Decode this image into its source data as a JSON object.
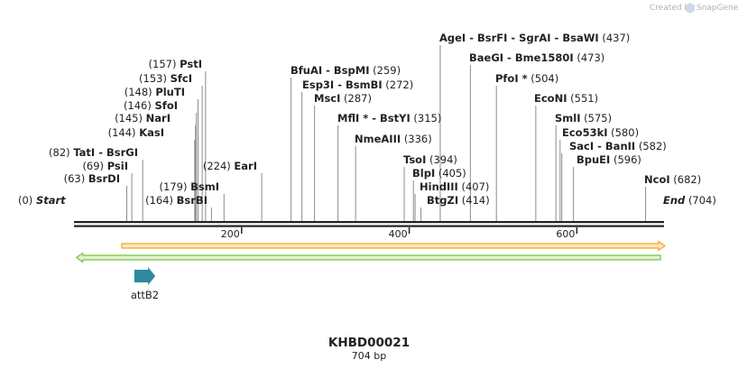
{
  "credit": {
    "prefix": "Created by",
    "brand": "SnapGene"
  },
  "map": {
    "title": "KHBD00021",
    "length_label": "704 bp",
    "length": 704,
    "ticks": [
      {
        "value": 200,
        "label": "200"
      },
      {
        "value": 400,
        "label": "400"
      },
      {
        "value": 600,
        "label": "600"
      }
    ]
  },
  "ends": {
    "start": {
      "name": "Start",
      "position": "(0)",
      "bp": 0
    },
    "end": {
      "name": "End",
      "position": "(704)",
      "bp": 704
    }
  },
  "sites": [
    {
      "id": "pstI",
      "text": "PstI",
      "pos": "(157)",
      "bp": 157,
      "pos_first": true
    },
    {
      "id": "sfcI",
      "text": "SfcI",
      "pos": "(153)",
      "bp": 153,
      "pos_first": true
    },
    {
      "id": "plutI",
      "text": "PluTI",
      "pos": "(148)",
      "bp": 148,
      "pos_first": true
    },
    {
      "id": "sfoI",
      "text": "SfoI",
      "pos": "(146)",
      "bp": 146,
      "pos_first": true
    },
    {
      "id": "narI",
      "text": "NarI",
      "pos": "(145)",
      "bp": 145,
      "pos_first": true
    },
    {
      "id": "kasI",
      "text": "KasI",
      "pos": "(144)",
      "bp": 144,
      "pos_first": true
    },
    {
      "id": "tatI",
      "text": "TatI  -  BsrGI",
      "pos": "(82)",
      "bp": 82,
      "pos_first": true
    },
    {
      "id": "psiI",
      "text": "PsiI",
      "pos": "(69)",
      "bp": 69,
      "pos_first": true
    },
    {
      "id": "bsrDI",
      "text": "BsrDI",
      "pos": "(63)",
      "bp": 63,
      "pos_first": true
    },
    {
      "id": "bsmI",
      "text": "BsmI",
      "pos": "(179)",
      "bp": 179,
      "pos_first": true
    },
    {
      "id": "bsrBI",
      "text": "BsrBI",
      "pos": "(164)",
      "bp": 164,
      "pos_first": true
    },
    {
      "id": "earI",
      "text": "EarI",
      "pos": "(224)",
      "bp": 224,
      "pos_first": true
    },
    {
      "id": "bfuAI",
      "text": "BfuAI  -  BspMI",
      "pos": "(259)",
      "bp": 259,
      "pos_first": false
    },
    {
      "id": "esp3I",
      "text": "Esp3I  -  BsmBI",
      "pos": "(272)",
      "bp": 272,
      "pos_first": false
    },
    {
      "id": "mscI",
      "text": "MscI",
      "pos": "(287)",
      "bp": 287,
      "pos_first": false
    },
    {
      "id": "mflI",
      "text": "MflI *  -  BstYI",
      "pos": "(315)",
      "bp": 315,
      "pos_first": false
    },
    {
      "id": "nmeAIII",
      "text": "NmeAIII",
      "pos": "(336)",
      "bp": 336,
      "pos_first": false
    },
    {
      "id": "tsoI",
      "text": "TsoI",
      "pos": "(394)",
      "bp": 394,
      "pos_first": false
    },
    {
      "id": "blpI",
      "text": "BlpI",
      "pos": "(405)",
      "bp": 405,
      "pos_first": false
    },
    {
      "id": "hindIII",
      "text": "HindIII",
      "pos": "(407)",
      "bp": 407,
      "pos_first": false
    },
    {
      "id": "btgZI",
      "text": "BtgZI",
      "pos": "(414)",
      "bp": 414,
      "pos_first": false
    },
    {
      "id": "ageI",
      "text": "AgeI  -  BsrFI  -  SgrAI  -  BsaWI",
      "pos": "(437)",
      "bp": 437,
      "pos_first": false
    },
    {
      "id": "baeGI",
      "text": "BaeGI  -  Bme1580I",
      "pos": "(473)",
      "bp": 473,
      "pos_first": false
    },
    {
      "id": "pfoI",
      "text": "PfoI *",
      "pos": "(504)",
      "bp": 504,
      "pos_first": false
    },
    {
      "id": "ecoNI",
      "text": "EcoNI",
      "pos": "(551)",
      "bp": 551,
      "pos_first": false
    },
    {
      "id": "smlI",
      "text": "SmlI",
      "pos": "(575)",
      "bp": 575,
      "pos_first": false
    },
    {
      "id": "eco53kI",
      "text": "Eco53kI",
      "pos": "(580)",
      "bp": 580,
      "pos_first": false
    },
    {
      "id": "sacI",
      "text": "SacI  -  BanII",
      "pos": "(582)",
      "bp": 582,
      "pos_first": false
    },
    {
      "id": "bpuEI",
      "text": "BpuEI",
      "pos": "(596)",
      "bp": 596,
      "pos_first": false
    },
    {
      "id": "ncoI",
      "text": "NcoI",
      "pos": "(682)",
      "bp": 682,
      "pos_first": false
    }
  ],
  "features": [
    {
      "id": "orange",
      "type": "forward-arrow",
      "bp_start": 57,
      "bp_end": 704,
      "color": "#f5a623",
      "fill": "#fbe7c2"
    },
    {
      "id": "green",
      "type": "reverse-arrow",
      "bp_start": 4,
      "bp_end": 704,
      "color": "#7cc242",
      "fill": "#e3f1d4"
    },
    {
      "id": "attB2",
      "type": "attb",
      "label": "attB2",
      "bp_start": 72,
      "bp_end": 97,
      "color": "#2e8a9e"
    }
  ],
  "colors": {
    "backbone": "#222222",
    "leader": "#8c8c8c"
  }
}
